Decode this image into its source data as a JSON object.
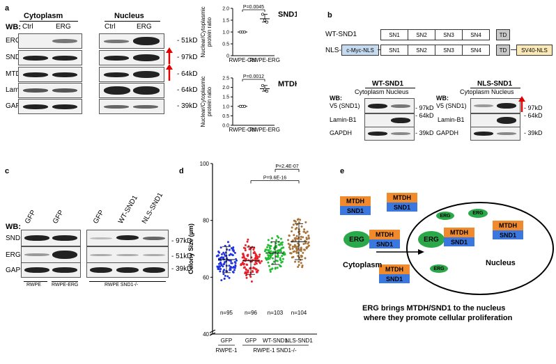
{
  "panel_a": {
    "letter": "a",
    "wb": "WB:",
    "cytoplasm": "Cytoplasm",
    "nucleus": "Nucleus",
    "ctrl": "Ctrl",
    "erg": "ERG",
    "rows": [
      "ERG",
      "SND1",
      "MTDH",
      "Lamin-B1",
      "GAPDH"
    ],
    "sizes": [
      "- 51kD",
      "- 97kD",
      "- 64kD",
      "- 64kD",
      "- 39kD"
    ],
    "arrow_color": "#e00000"
  },
  "chart_data": [
    {
      "type": "scatter",
      "title": "SND1",
      "ylabel": "Nuclear/Cytoplasmic protein ratio",
      "categories": [
        "RWPE-Ctrl",
        "RWPE-ERG"
      ],
      "ylim": [
        0,
        2.0
      ],
      "yticks": [
        "0",
        "0.5",
        "1.0",
        "1.5",
        "2.0"
      ],
      "series": [
        {
          "values": [
            [
              1.0,
              1.0,
              1.0
            ],
            [
              1.75,
              1.5,
              1.42
            ]
          ]
        }
      ],
      "means": [
        1.0,
        1.56
      ],
      "pvalue": "P=0.0045"
    },
    {
      "type": "scatter",
      "title": "MTDH",
      "ylabel": "Nuclear/Cytoplasmic protein ratio",
      "categories": [
        "RWPE-Ctrl",
        "RWPE-ERG"
      ],
      "ylim": [
        0,
        2.5
      ],
      "yticks": [
        "0.0",
        "0.5",
        "1.0",
        "1.5",
        "2.0",
        "2.5"
      ],
      "series": [
        {
          "values": [
            [
              1.0,
              1.0,
              1.0
            ],
            [
              2.1,
              1.9,
              1.8
            ]
          ]
        }
      ],
      "means": [
        1.0,
        1.93
      ],
      "pvalue": "P=0.0012"
    },
    {
      "type": "scatter",
      "ylabel": "Colony Size (µm)",
      "categories": [
        "GFP",
        "GFP",
        "WT-SND1",
        "NLS-SND1"
      ],
      "group_labels": [
        "RWPE-1",
        "RWPE-1 SND1-/-"
      ],
      "ylim": [
        40,
        100
      ],
      "yticks": [
        "40",
        "60",
        "80",
        "100"
      ],
      "colors": [
        "#2233dd",
        "#e8202a",
        "#22bb33",
        "#a8743a"
      ],
      "n_labels": [
        "n=95",
        "n=96",
        "n=103",
        "n=104"
      ],
      "counts": [
        95,
        96,
        103,
        104
      ],
      "means": [
        66.2,
        65.8,
        68.5,
        72.5
      ],
      "sd": [
        4.6,
        4.8,
        4.0,
        6.3
      ],
      "min": [
        57,
        55,
        60,
        58
      ],
      "max": [
        76,
        78,
        78,
        87
      ],
      "pvalues": [
        "P=9.6E-16",
        "P=2.4E-07"
      ]
    }
  ],
  "panel_b": {
    "letter": "b",
    "wt": "WT-SND1",
    "nls": "NLS-SND1",
    "domains": [
      "SN1",
      "SN2",
      "SN3",
      "SN4",
      "TD"
    ],
    "cmyc": "c-Myc-NLS",
    "sv40": "SV40-NLS",
    "blot_wt_title": "WT-SND1",
    "blot_nls_title": "NLS-SND1",
    "wb": "WB:",
    "cytoplasm": "Cytoplasm",
    "nucleus": "Nucleus",
    "rows": [
      "V5 (SND1)",
      "Lamin-B1",
      "GAPDH"
    ],
    "sizes": [
      "- 97kD",
      "- 64kD",
      "- 39kD"
    ]
  },
  "panel_c": {
    "letter": "c",
    "wb": "WB:",
    "lanes": [
      "GFP",
      "GFP",
      "GFP",
      "WT-SND1",
      "NLS-SND1"
    ],
    "rows": [
      "SND1",
      "ERG",
      "GAPDH"
    ],
    "sizes": [
      "- 97kD",
      "- 51kD",
      "- 39kD"
    ],
    "groups": [
      "RWPE",
      "RWPE-ERG",
      "RWPE SND1-/-"
    ]
  },
  "panel_d": {
    "letter": "d"
  },
  "panel_e": {
    "letter": "e",
    "mtdh": "MTDH",
    "snd1": "SND1",
    "erg": "ERG",
    "cytoplasm": "Cytoplasm",
    "nucleus": "Nucleus",
    "caption1": "ERG brings MTDH/SND1 to the nucleus",
    "caption2": "where they promote cellular proliferation",
    "colors": {
      "mtdh": "#f08a2c",
      "snd1": "#3a78e0",
      "erg": "#2aa84a"
    }
  }
}
